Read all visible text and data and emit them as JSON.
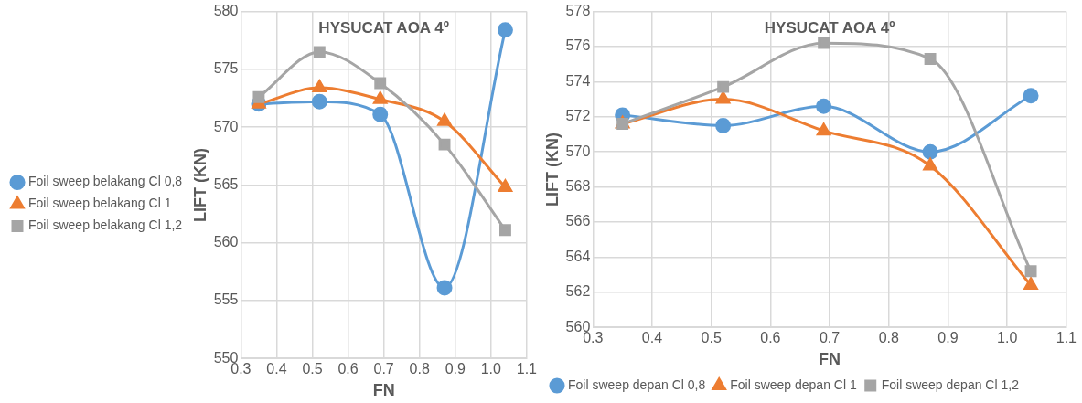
{
  "chart_data": [
    {
      "type": "line",
      "title": "HYSUCAT AOA 4º",
      "xlabel": "FN",
      "ylabel": "LIFT (KN)",
      "x": [
        0.35,
        0.52,
        0.69,
        0.87,
        1.04
      ],
      "series": [
        {
          "name": "Foil sweep belakang Cl 0,8",
          "color": "#5b9bd5",
          "marker": "circle",
          "values": [
            572.0,
            572.2,
            571.1,
            556.1,
            578.4
          ]
        },
        {
          "name": "Foil sweep belakang Cl 1",
          "color": "#ed7d31",
          "marker": "triangle",
          "values": [
            572.0,
            573.4,
            572.4,
            570.5,
            564.8
          ]
        },
        {
          "name": "Foil sweep belakang Cl 1,2",
          "color": "#a5a5a5",
          "marker": "square",
          "values": [
            572.6,
            576.5,
            573.8,
            568.5,
            561.1
          ]
        }
      ],
      "xlim": [
        0.3,
        1.1
      ],
      "xticks": [
        0.3,
        0.4,
        0.5,
        0.6,
        0.7,
        0.8,
        0.9,
        {
          "value": 1,
          "label": "1.0"
        },
        1.1
      ],
      "ylim": [
        550,
        580
      ],
      "yticks": [
        550,
        555,
        560,
        565,
        570,
        575,
        580
      ],
      "grid": true,
      "legend": "left"
    },
    {
      "type": "line",
      "title": "HYSUCAT AOA 4º",
      "xlabel": "FN",
      "ylabel": "LIFT (KN)",
      "x": [
        0.35,
        0.52,
        0.69,
        0.87,
        1.04
      ],
      "series": [
        {
          "name": "Foil sweep depan Cl 0,8",
          "color": "#5b9bd5",
          "marker": "circle",
          "values": [
            572.1,
            571.5,
            572.6,
            570.0,
            573.2
          ]
        },
        {
          "name": "Foil sweep depan Cl 1",
          "color": "#ed7d31",
          "marker": "triangle",
          "values": [
            571.6,
            573.0,
            571.2,
            569.2,
            562.4
          ]
        },
        {
          "name": "Foil sweep depan Cl 1,2",
          "color": "#a5a5a5",
          "marker": "square",
          "values": [
            571.6,
            573.7,
            576.2,
            575.3,
            563.2
          ]
        }
      ],
      "xlim": [
        0.3,
        1.1
      ],
      "xticks": [
        0.3,
        0.4,
        0.5,
        0.6,
        0.7,
        0.8,
        0.9,
        {
          "value": 1,
          "label": "1.0"
        },
        1.1
      ],
      "ylim": [
        560,
        578
      ],
      "yticks": [
        560,
        562,
        564,
        566,
        568,
        570,
        572,
        574,
        576,
        578
      ],
      "grid": true,
      "legend": "bottom left"
    }
  ]
}
